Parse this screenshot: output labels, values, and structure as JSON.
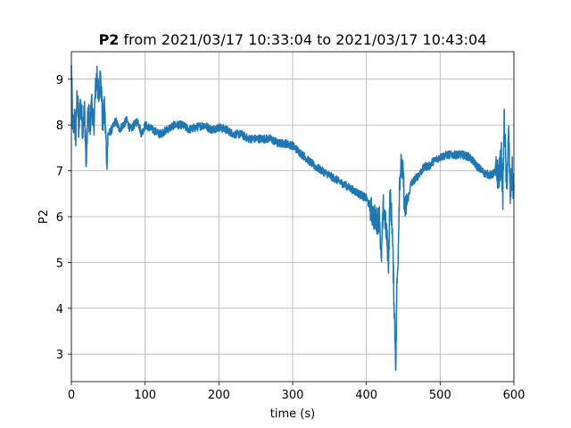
{
  "chart_data": {
    "type": "line",
    "title_bold": "P2",
    "title_rest": "from 2021/03/17 10:33:04 to 2021/03/17 10:43:04",
    "xlabel": "time (s)",
    "ylabel": "P2",
    "xlim": [
      0,
      600
    ],
    "ylim": [
      2.4,
      9.6
    ],
    "xticks": [
      0,
      100,
      200,
      300,
      400,
      500,
      600
    ],
    "yticks": [
      3,
      4,
      5,
      6,
      7,
      8,
      9
    ],
    "grid": true,
    "color": "#1f77b4",
    "series": [
      {
        "x": [
          0,
          2,
          4,
          6,
          8,
          10,
          12,
          15,
          18,
          20,
          22,
          25,
          28,
          30,
          33,
          35,
          37,
          40,
          42,
          45,
          48,
          50,
          55,
          60,
          65,
          70,
          75,
          80,
          85,
          90,
          95,
          100,
          110,
          120,
          130,
          140,
          150,
          160,
          170,
          180,
          190,
          200,
          210,
          220,
          230,
          240,
          250,
          260,
          270,
          280,
          290,
          300,
          310,
          320,
          330,
          340,
          350,
          360,
          370,
          380,
          390,
          400,
          405,
          410,
          415,
          418,
          420,
          423,
          425,
          428,
          430,
          432,
          435,
          437,
          440,
          441,
          443,
          445,
          447,
          450,
          452,
          455,
          458,
          460,
          465,
          470,
          475,
          480,
          485,
          490,
          495,
          500,
          510,
          520,
          530,
          540,
          550,
          560,
          570,
          575,
          580,
          583,
          585,
          587,
          590,
          593,
          595,
          598,
          600
        ],
        "y": [
          9.2,
          7.8,
          8.2,
          7.7,
          8.8,
          7.8,
          8.5,
          8.0,
          8.3,
          7.1,
          8.2,
          8.0,
          8.5,
          7.9,
          8.8,
          9.2,
          8.5,
          9.2,
          8.1,
          8.3,
          7.3,
          7.8,
          7.9,
          8.1,
          7.9,
          8.0,
          8.1,
          7.9,
          8.0,
          8.1,
          7.8,
          8.0,
          7.9,
          7.8,
          7.9,
          8.0,
          8.0,
          7.9,
          7.95,
          8.0,
          7.9,
          7.95,
          7.9,
          7.8,
          7.8,
          7.7,
          7.7,
          7.7,
          7.7,
          7.6,
          7.6,
          7.55,
          7.4,
          7.25,
          7.1,
          7.0,
          6.9,
          6.8,
          6.7,
          6.6,
          6.5,
          6.4,
          6.2,
          6.0,
          5.9,
          6.0,
          5.0,
          6.2,
          6.0,
          5.5,
          5.0,
          6.5,
          5.8,
          4.5,
          2.7,
          4.2,
          5.2,
          6.8,
          7.1,
          6.9,
          6.1,
          6.3,
          6.5,
          6.7,
          6.8,
          6.9,
          7.0,
          7.1,
          7.1,
          7.2,
          7.25,
          7.3,
          7.35,
          7.35,
          7.35,
          7.3,
          7.1,
          6.95,
          6.9,
          7.0,
          6.9,
          7.3,
          6.5,
          8.2,
          6.6,
          7.8,
          6.5,
          7.0,
          6.4
        ]
      }
    ]
  }
}
